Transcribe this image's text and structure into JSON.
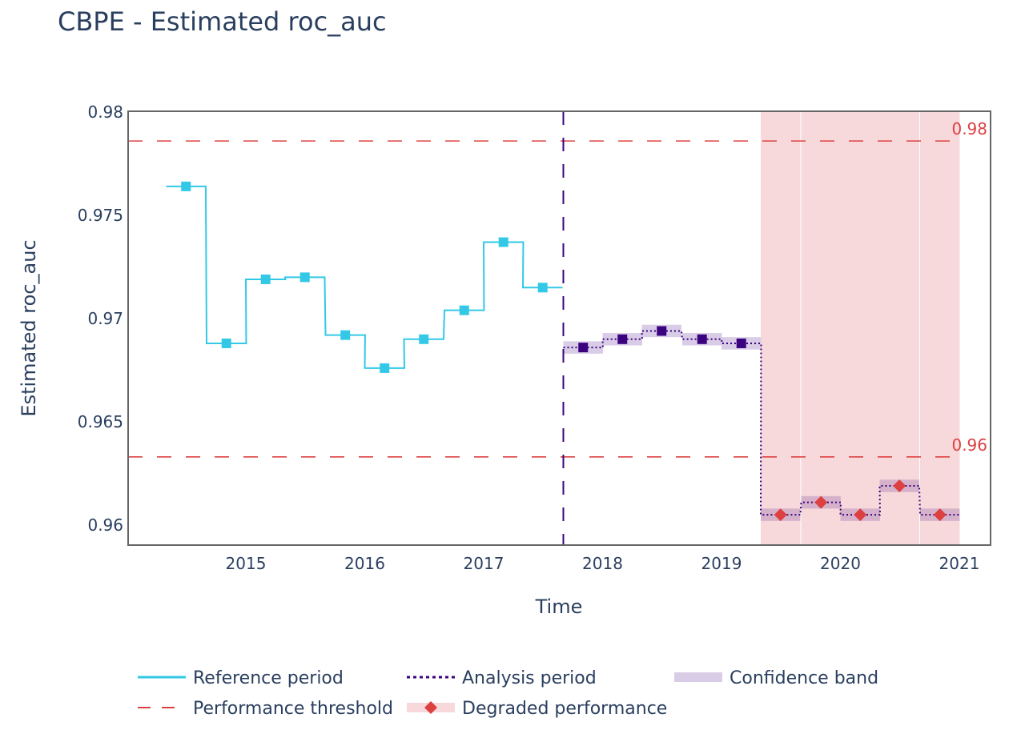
{
  "chart_data": {
    "type": "line",
    "title": "CBPE - Estimated roc_auc",
    "xlabel": "Time",
    "ylabel": "Estimated roc_auc",
    "ylim": [
      0.9589,
      0.98
    ],
    "xlim": [
      2014.1,
      2021.2
    ],
    "grid": false,
    "yticks": [
      0.96,
      0.965,
      0.97,
      0.975,
      0.98
    ],
    "ytick_labels": [
      "0.96",
      "0.965",
      "0.97",
      "0.975",
      "0.98"
    ],
    "xticks": [
      2015,
      2016,
      2017,
      2018,
      2019,
      2020,
      2021
    ],
    "xtick_labels": [
      "2015",
      "2016",
      "2017",
      "2018",
      "2019",
      "2020",
      "2021"
    ],
    "chunk_width_years": 0.333,
    "reference": {
      "name": "Reference period",
      "color": "#33c9e6",
      "chunk_starts": [
        2014.33,
        2014.67,
        2015.0,
        2015.33,
        2015.67,
        2016.0,
        2016.33,
        2016.67,
        2017.0,
        2017.33
      ],
      "values": [
        0.9764,
        0.9688,
        0.9719,
        0.972,
        0.9692,
        0.9676,
        0.969,
        0.9704,
        0.9737,
        0.9715
      ]
    },
    "analysis": {
      "name": "Analysis period",
      "color": "#3b0280",
      "chunk_starts": [
        2017.67,
        2018.0,
        2018.33,
        2018.67,
        2019.0,
        2019.33,
        2019.67,
        2020.0,
        2020.33,
        2020.67
      ],
      "values": [
        0.9686,
        0.969,
        0.9694,
        0.969,
        0.9688,
        0.9605,
        0.9611,
        0.9605,
        0.9619,
        0.9605
      ],
      "lower": [
        0.9683,
        0.9687,
        0.9691,
        0.9687,
        0.9685,
        0.9602,
        0.9608,
        0.9602,
        0.9616,
        0.9602
      ],
      "upper": [
        0.9689,
        0.9693,
        0.9697,
        0.9693,
        0.9691,
        0.9608,
        0.9614,
        0.9608,
        0.9622,
        0.9608
      ],
      "degraded": [
        false,
        false,
        false,
        false,
        false,
        true,
        true,
        true,
        true,
        true
      ]
    },
    "period_split": 2017.67,
    "thresholds": [
      {
        "value": 0.9786,
        "label": "0.98"
      },
      {
        "value": 0.9633,
        "label": "0.96"
      }
    ],
    "colors": {
      "threshold": "#dd4040",
      "degraded_marker": "#dd4040",
      "degraded_region": "#f7d9db",
      "confidence_band": "#d8cce6",
      "axis": "#666666"
    },
    "legend": {
      "placement": "bottom",
      "items": [
        {
          "label": "Reference period",
          "kind": "solid-line"
        },
        {
          "label": "Analysis period",
          "kind": "dotted-line"
        },
        {
          "label": "Confidence band",
          "kind": "band"
        },
        {
          "label": "Performance threshold",
          "kind": "dashed-line"
        },
        {
          "label": "Degraded performance",
          "kind": "diamond-region"
        }
      ]
    }
  }
}
